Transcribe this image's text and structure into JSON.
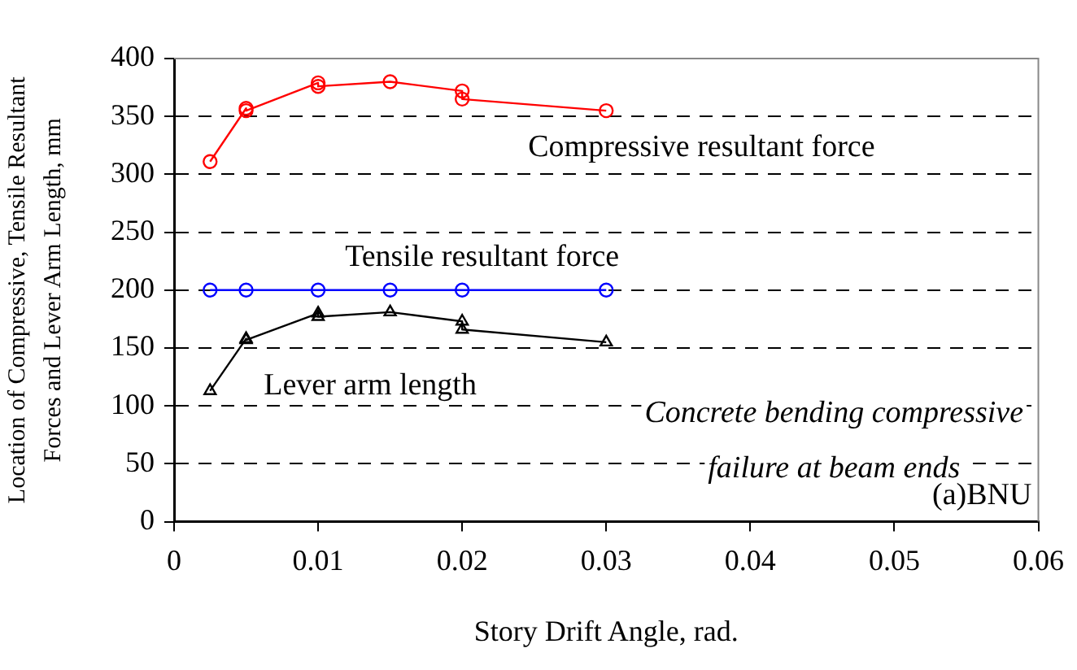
{
  "chart_data": {
    "type": "line",
    "xlabel": "Story Drift Angle, rad.",
    "ylabel": "Location of Compressive, Tensile Resultant Forces and Lever Arm Length, mm",
    "xlim": [
      0,
      0.06
    ],
    "xticks": [
      0,
      0.01,
      0.02,
      0.03,
      0.04,
      0.05,
      0.06
    ],
    "ylim": [
      0,
      400
    ],
    "yticks": [
      0,
      50,
      100,
      150,
      200,
      250,
      300,
      350,
      400
    ],
    "grid": "y",
    "legend": false,
    "series": [
      {
        "name": "Compressive resultant force",
        "color": "#ff0000",
        "marker": "circle",
        "x": [
          0.0025,
          0.005,
          0.005,
          0.01,
          0.01,
          0.015,
          0.02,
          0.02,
          0.03
        ],
        "values": [
          311,
          357,
          355,
          379,
          376,
          380,
          372,
          365,
          355
        ]
      },
      {
        "name": "Tensile resultant force",
        "color": "#0000ff",
        "marker": "circle",
        "x": [
          0.0025,
          0.005,
          0.01,
          0.015,
          0.02,
          0.03
        ],
        "values": [
          200,
          200,
          200,
          200,
          200,
          200
        ]
      },
      {
        "name": "Lever arm length",
        "color": "#000000",
        "marker": "triangle",
        "x": [
          0.0025,
          0.005,
          0.005,
          0.01,
          0.01,
          0.015,
          0.02,
          0.02,
          0.03
        ],
        "values": [
          113,
          158,
          157,
          180,
          177,
          181,
          173,
          166,
          155
        ]
      }
    ],
    "annotations": [
      "Concrete bending compressive failure at beam ends",
      "(a)BNU"
    ]
  }
}
